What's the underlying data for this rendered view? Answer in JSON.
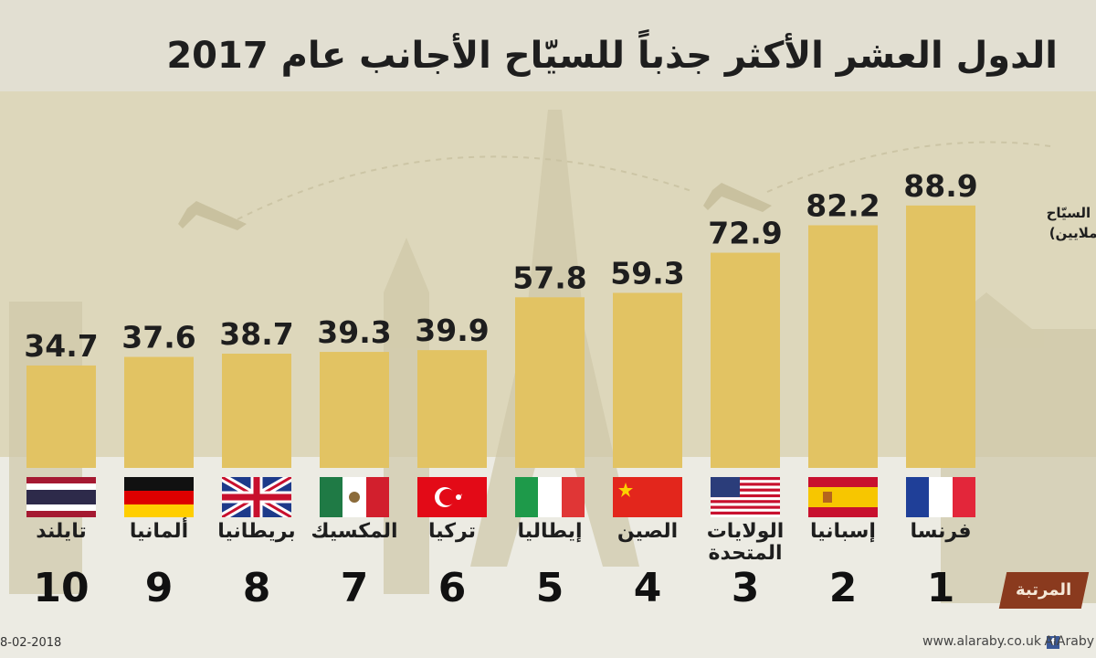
{
  "title": "الدول العشر الأكثر جذباً للسيّاح الأجانب عام 2017",
  "chart_data": {
    "type": "bar",
    "ylabel_line1": "عدد السيّاح",
    "ylabel_line2": "(بالملايين)",
    "rank_label": "المرتبة",
    "ylim": [
      0,
      95
    ],
    "items": [
      {
        "rank": "1",
        "country": "فرنسا",
        "value": 88.9,
        "value_label": "88.9",
        "flag": "france"
      },
      {
        "rank": "2",
        "country": "إسبانيا",
        "value": 82.2,
        "value_label": "82.2",
        "flag": "spain"
      },
      {
        "rank": "3",
        "country": "الولايات المتحدة",
        "value": 72.9,
        "value_label": "72.9",
        "flag": "usa"
      },
      {
        "rank": "4",
        "country": "الصين",
        "value": 59.3,
        "value_label": "59.3",
        "flag": "china"
      },
      {
        "rank": "5",
        "country": "إيطاليا",
        "value": 57.8,
        "value_label": "57.8",
        "flag": "italy"
      },
      {
        "rank": "6",
        "country": "تركيا",
        "value": 39.9,
        "value_label": "39.9",
        "flag": "turkey"
      },
      {
        "rank": "7",
        "country": "المكسيك",
        "value": 39.3,
        "value_label": "39.3",
        "flag": "mexico"
      },
      {
        "rank": "8",
        "country": "بريطانيا",
        "value": 38.7,
        "value_label": "38.7",
        "flag": "uk"
      },
      {
        "rank": "9",
        "country": "ألمانيا",
        "value": 37.6,
        "value_label": "37.6",
        "flag": "germany"
      },
      {
        "rank": "10",
        "country": "تايلند",
        "value": 34.7,
        "value_label": "34.7",
        "flag": "thailand"
      }
    ]
  },
  "footer": {
    "date": "8-02-2018",
    "site": "www.alaraby.co.uk",
    "brand": "AlAraby"
  },
  "colors": {
    "bar": "#e2c363",
    "rank_tag": "#8a3a1e",
    "chart_background": "#ddd7bb"
  }
}
